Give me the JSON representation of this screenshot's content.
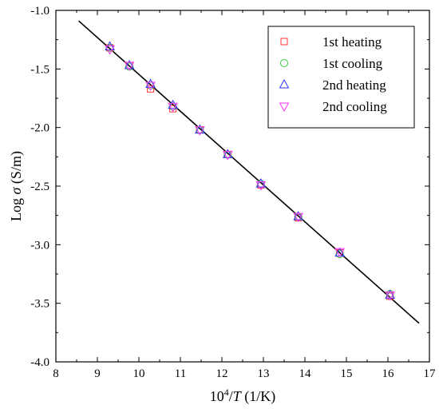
{
  "chart_data": {
    "type": "scatter",
    "title": "",
    "xlabel": {
      "prefix": "10",
      "sup": "4",
      "slash": "/",
      "var": "T",
      "unit": " (1/K)"
    },
    "ylabel": {
      "prefix": "Log ",
      "var": "σ",
      "unit": "  (S/m)"
    },
    "xlim": [
      8,
      17
    ],
    "ylim": [
      -4.0,
      -1.0
    ],
    "xticks": [
      8,
      9,
      10,
      11,
      12,
      13,
      14,
      15,
      16,
      17
    ],
    "yticks": [
      -4.0,
      -3.5,
      -3.0,
      -2.5,
      -2.0,
      -1.5,
      -1.0
    ],
    "xtick_labels": [
      "8",
      "9",
      "10",
      "11",
      "12",
      "13",
      "14",
      "15",
      "16",
      "17"
    ],
    "ytick_labels": [
      "-4.0",
      "-3.5",
      "-3.0",
      "-2.5",
      "-2.0",
      "-1.5",
      "-1.0"
    ],
    "grid": false,
    "legend_position": "top-right",
    "fit_line": {
      "x": [
        8.55,
        16.75
      ],
      "y": [
        -1.09,
        -3.67
      ],
      "color": "#000000"
    },
    "series": [
      {
        "name": "1st heating",
        "marker": "square",
        "color": "#ff3333",
        "x": [
          9.3,
          9.77,
          10.28,
          10.82,
          11.47,
          12.14,
          12.94,
          13.84,
          14.84,
          16.05
        ],
        "y": [
          -1.32,
          -1.47,
          -1.67,
          -1.84,
          -2.02,
          -2.23,
          -2.49,
          -2.77,
          -3.07,
          -3.44
        ]
      },
      {
        "name": "1st cooling",
        "marker": "circle",
        "color": "#33cc33",
        "x": [
          9.3,
          9.77,
          10.28,
          10.82,
          11.47,
          12.14,
          12.94,
          13.84,
          14.84,
          16.05
        ],
        "y": [
          -1.32,
          -1.48,
          -1.64,
          -1.82,
          -2.02,
          -2.23,
          -2.48,
          -2.76,
          -3.08,
          -3.42
        ]
      },
      {
        "name": "2nd heating",
        "marker": "triangle-up",
        "color": "#3333ff",
        "x": [
          9.3,
          9.77,
          10.28,
          10.82,
          11.47,
          12.14,
          12.94,
          13.84,
          14.84,
          16.05
        ],
        "y": [
          -1.31,
          -1.47,
          -1.63,
          -1.81,
          -2.02,
          -2.23,
          -2.48,
          -2.76,
          -3.07,
          -3.43
        ]
      },
      {
        "name": "2nd cooling",
        "marker": "triangle-down",
        "color": "#ff33ff",
        "x": [
          9.3,
          9.77,
          10.28,
          10.82,
          11.47,
          12.14,
          12.94,
          13.84,
          14.84,
          16.05
        ],
        "y": [
          -1.33,
          -1.47,
          -1.64,
          -1.82,
          -2.02,
          -2.23,
          -2.49,
          -2.76,
          -3.06,
          -3.43
        ]
      }
    ]
  }
}
